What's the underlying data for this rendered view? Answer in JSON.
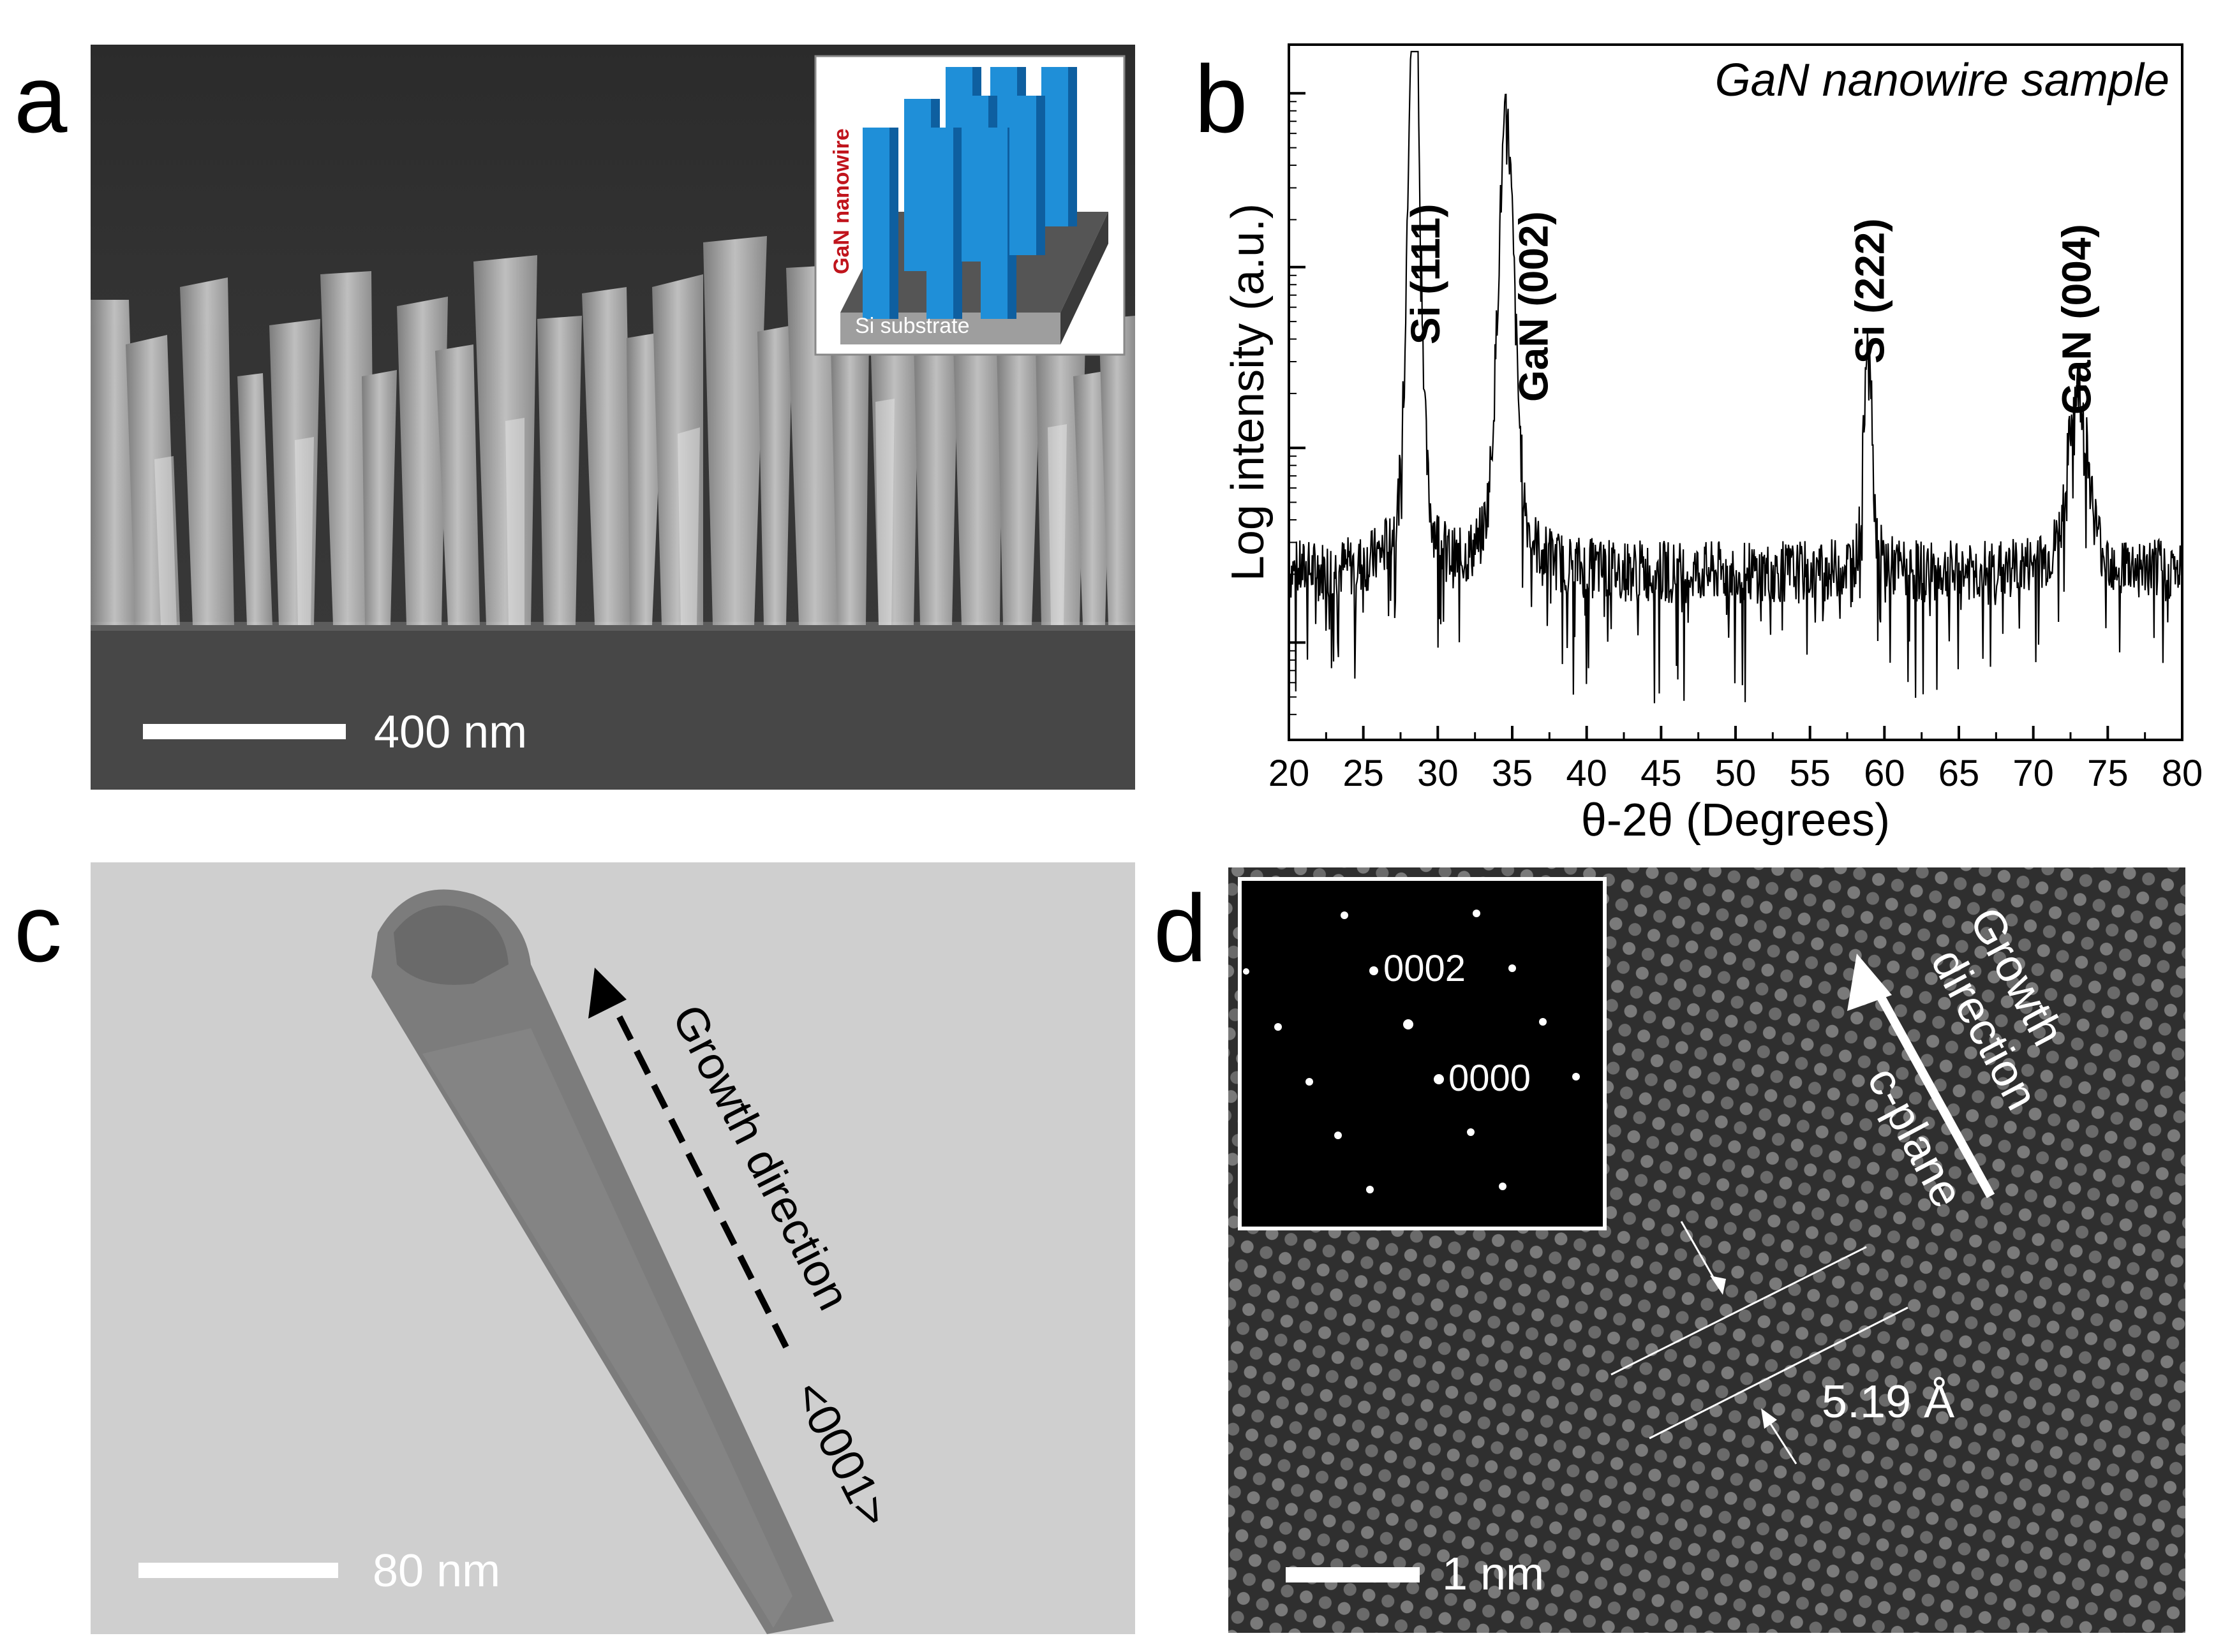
{
  "panels": {
    "a": {
      "letter": "a",
      "scale_bar": "400 nm",
      "inset": {
        "wire_label": "GaN nanowire",
        "substrate_label": "Si substrate"
      }
    },
    "b": {
      "letter": "b"
    },
    "c": {
      "letter": "c",
      "scale_bar": "80 nm",
      "growth_label": "Growth direction",
      "direction_index": "<0001>"
    },
    "d": {
      "letter": "d",
      "scale_bar": "1 nm",
      "growth_label_line1": "Growth",
      "growth_label_line2": "direction",
      "plane_label": "c-plane",
      "spacing_label": "5.19 Å",
      "diffraction": {
        "spot_0002": "0002",
        "spot_0000": "0000"
      }
    }
  },
  "chart_data": {
    "type": "line",
    "title": "GaN nanowire sample",
    "xlabel": "θ-2θ (Degrees)",
    "ylabel": "Log intensity (a.u.)",
    "xlim": [
      20,
      80
    ],
    "x_ticks": [
      20,
      25,
      30,
      35,
      40,
      45,
      50,
      55,
      60,
      65,
      70,
      75,
      80
    ],
    "y_scale": "log",
    "y_tick_labels_shown": false,
    "peaks": [
      {
        "label": "Si (111)",
        "position_deg": 28.4,
        "relative_log_height": 0.96
      },
      {
        "label": "GaN (002)",
        "position_deg": 34.6,
        "relative_log_height": 0.76
      },
      {
        "label": "Si (222)",
        "position_deg": 58.9,
        "relative_log_height": 0.53
      },
      {
        "label": "GaN (004)",
        "position_deg": 73.0,
        "relative_log_height": 0.45
      }
    ],
    "series": [
      {
        "values_description_only": "noisy baseline with four diffraction peaks",
        "color": "#000000"
      }
    ]
  }
}
